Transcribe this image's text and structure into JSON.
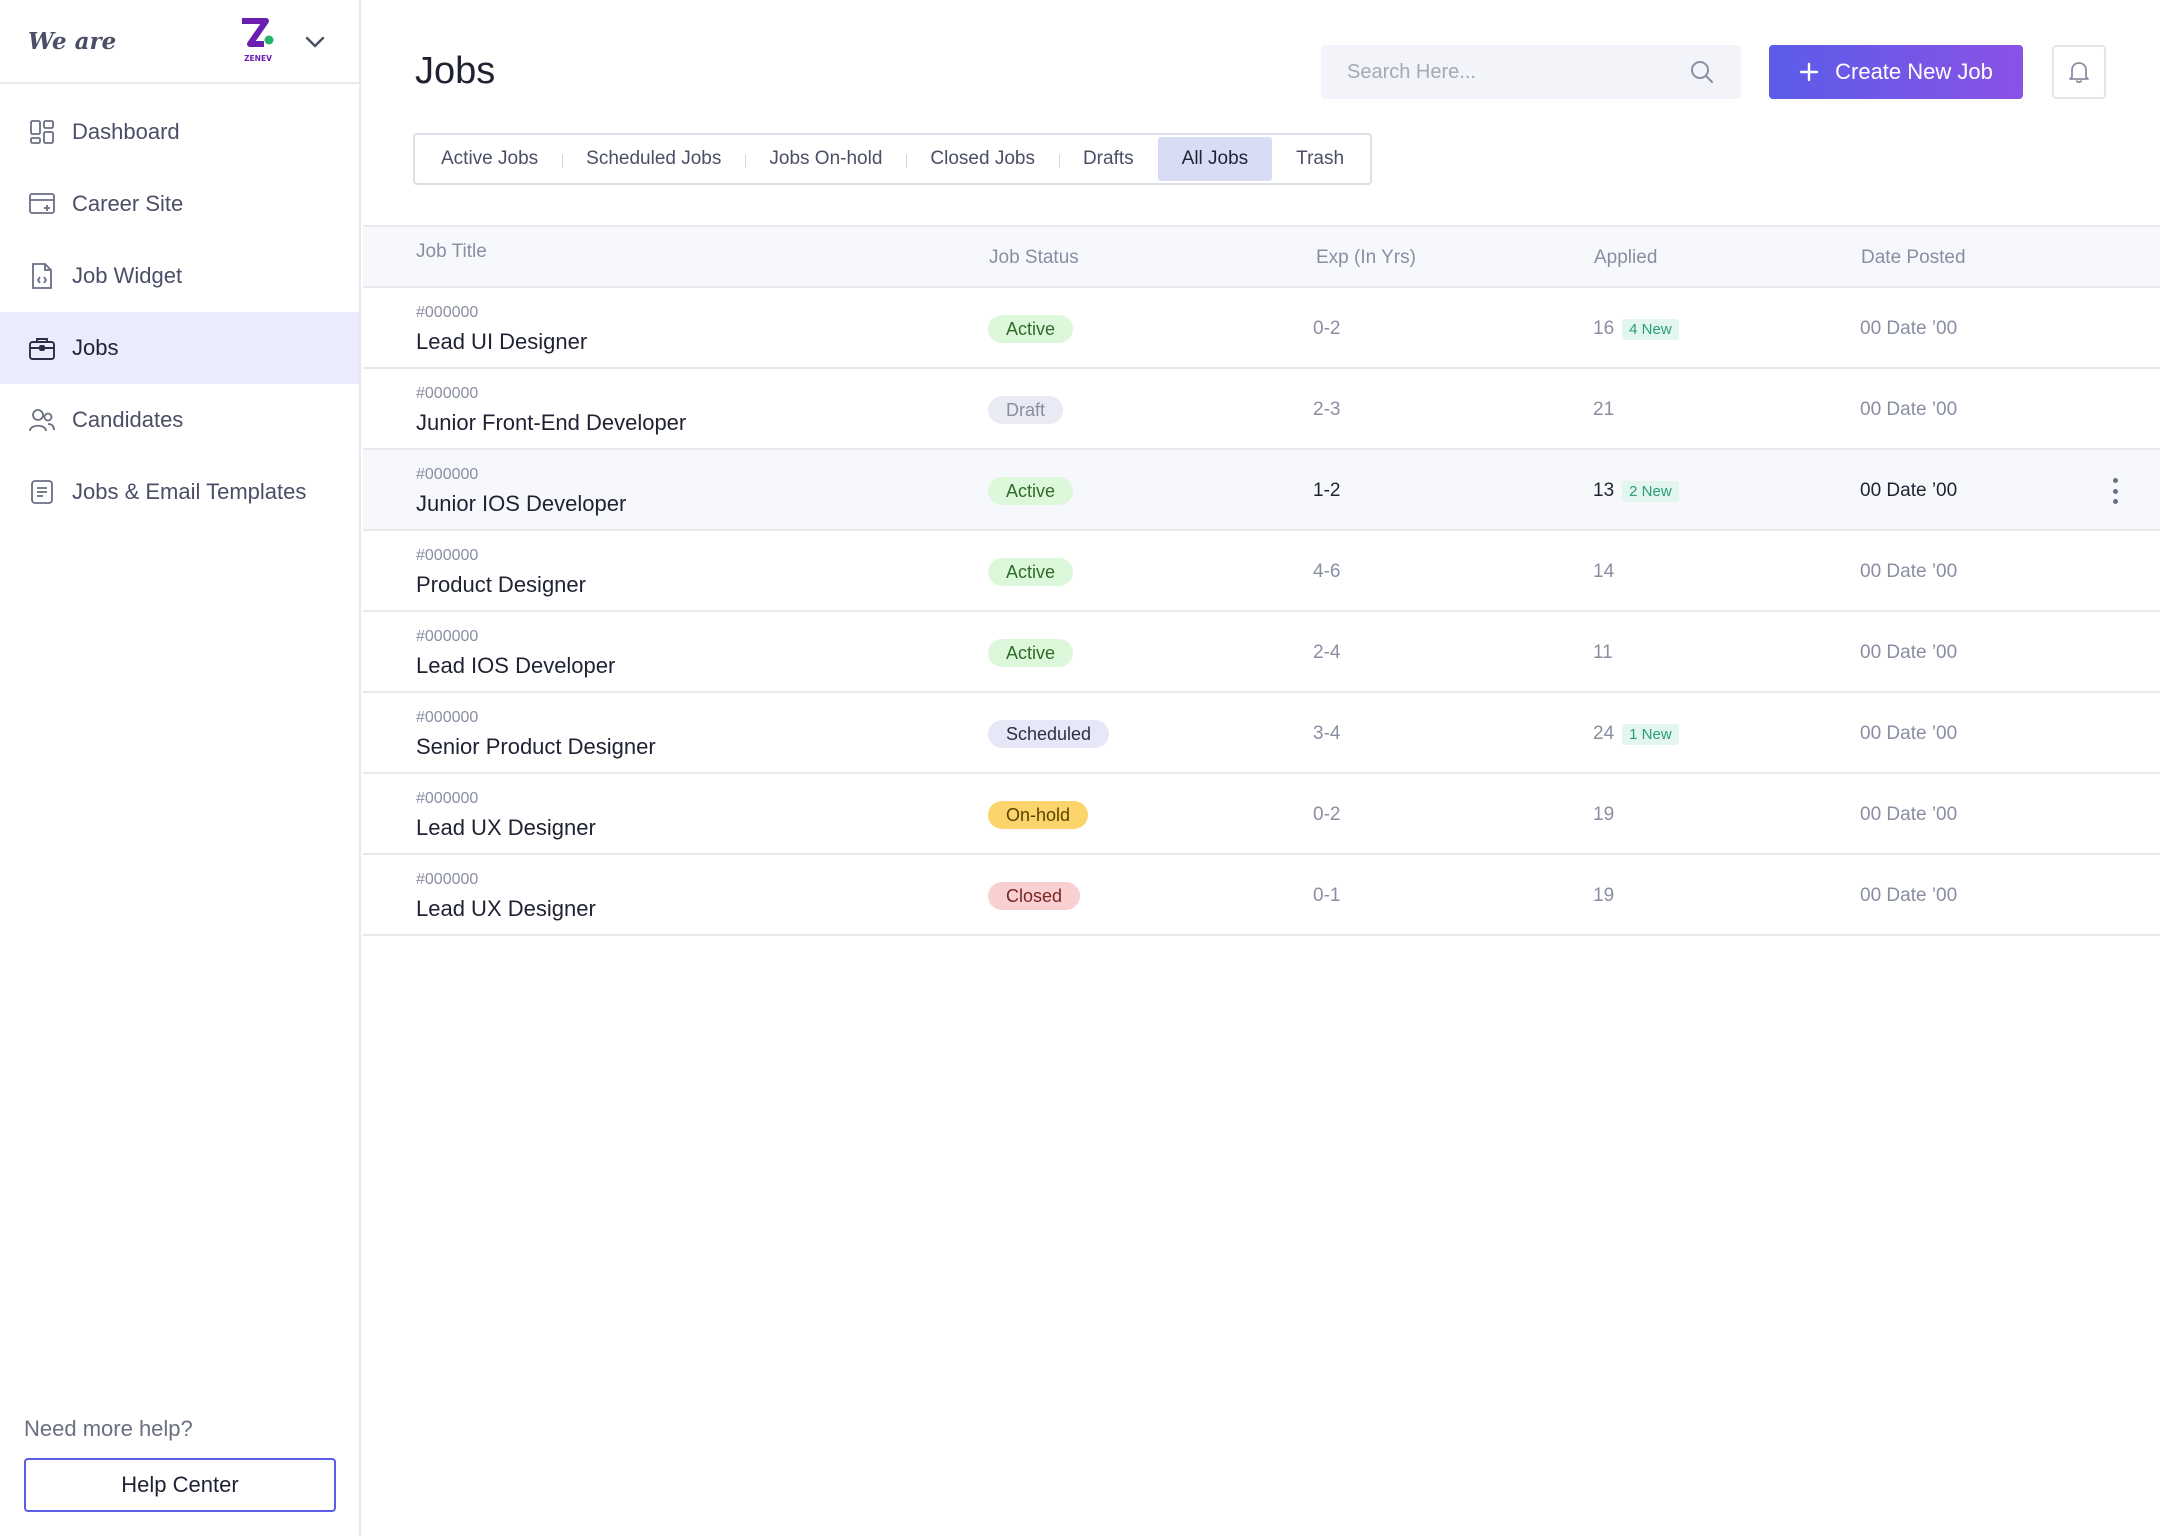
{
  "sidebar": {
    "brand_text": "We are",
    "brand_logo_text": "ZENEV",
    "items": [
      {
        "label": "Dashboard",
        "icon": "dashboard-icon",
        "active": false
      },
      {
        "label": "Career Site",
        "icon": "career-site-icon",
        "active": false
      },
      {
        "label": "Job Widget",
        "icon": "job-widget-icon",
        "active": false
      },
      {
        "label": "Jobs",
        "icon": "briefcase-icon",
        "active": true
      },
      {
        "label": "Candidates",
        "icon": "candidates-icon",
        "active": false
      },
      {
        "label": "Jobs & Email Templates",
        "icon": "templates-icon",
        "active": false
      }
    ],
    "help_text": "Need more help?",
    "help_button": "Help Center"
  },
  "header": {
    "title": "Jobs",
    "search_placeholder": "Search Here...",
    "create_button": "Create New Job"
  },
  "tabs": [
    {
      "label": "Active Jobs",
      "active": false
    },
    {
      "label": "Scheduled Jobs",
      "active": false
    },
    {
      "label": "Jobs On-hold",
      "active": false
    },
    {
      "label": "Closed Jobs",
      "active": false
    },
    {
      "label": "Drafts",
      "active": false
    },
    {
      "label": "All Jobs",
      "active": true
    },
    {
      "label": "Trash",
      "active": false
    }
  ],
  "table": {
    "columns": {
      "title": "Job Title",
      "status": "Job Status",
      "exp": "Exp (In Yrs)",
      "applied": "Applied",
      "date": "Date Posted"
    },
    "rows": [
      {
        "id": "#000000",
        "title": "Lead UI Designer",
        "status": "Active",
        "exp": "0-2",
        "applied": "16",
        "new": "4 New",
        "date": "00 Date ’00"
      },
      {
        "id": "#000000",
        "title": "Junior Front-End Developer",
        "status": "Draft",
        "exp": "2-3",
        "applied": "21",
        "new": "",
        "date": "00 Date ’00"
      },
      {
        "id": "#000000",
        "title": "Junior IOS Developer",
        "status": "Active",
        "exp": "1-2",
        "applied": "13",
        "new": "2 New",
        "date": "00 Date ’00"
      },
      {
        "id": "#000000",
        "title": "Product Designer",
        "status": "Active",
        "exp": "4-6",
        "applied": "14",
        "new": "",
        "date": "00 Date ’00"
      },
      {
        "id": "#000000",
        "title": "Lead IOS Developer",
        "status": "Active",
        "exp": "2-4",
        "applied": "11",
        "new": "",
        "date": "00 Date ’00"
      },
      {
        "id": "#000000",
        "title": "Senior Product Designer",
        "status": "Scheduled",
        "exp": "3-4",
        "applied": "24",
        "new": "1 New",
        "date": "00 Date ’00"
      },
      {
        "id": "#000000",
        "title": "Lead UX Designer",
        "status": "On-hold",
        "exp": "0-2",
        "applied": "19",
        "new": "",
        "date": "00 Date ’00"
      },
      {
        "id": "#000000",
        "title": "Lead UX Designer",
        "status": "Closed",
        "exp": "0-1",
        "applied": "19",
        "new": "",
        "date": "00 Date ’00"
      }
    ],
    "highlighted_row": 2
  },
  "colors": {
    "accent": "#5b5ce8",
    "accent_end": "#8a52e6",
    "active_bg": "#dcf7d9",
    "active_fg": "#2f6b2b",
    "draft_bg": "#e9eaf3",
    "draft_fg": "#8a8ea3",
    "scheduled_bg": "#e6e8f7",
    "scheduled_fg": "#2b2f45",
    "onhold_bg": "#fbd56b",
    "onhold_fg": "#5a4300",
    "closed_bg": "#f9cfcf",
    "closed_fg": "#7a2424"
  }
}
